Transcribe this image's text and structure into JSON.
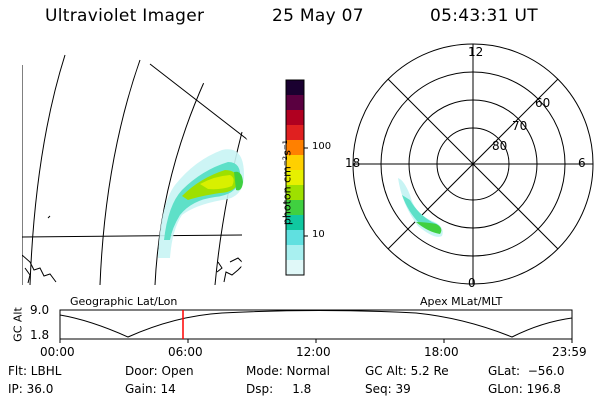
{
  "header": {
    "title": "Ultraviolet Imager",
    "date": "25 May 07",
    "time": "05:43:31 UT"
  },
  "colorbar": {
    "unit_label": "photon cm⁻²s⁻¹",
    "ticks": [
      "100",
      "10"
    ],
    "scale": "log",
    "colors": [
      "#1a0030",
      "#5a0040",
      "#b00020",
      "#e02020",
      "#ff8000",
      "#ffd000",
      "#e6f000",
      "#9ee000",
      "#40d040",
      "#10c8a0",
      "#60e0e0",
      "#a8f0f0",
      "#e0f8f8"
    ]
  },
  "geo_panel": {
    "label": "Geographic Lat/Lon"
  },
  "polar_panel": {
    "label": "Apex MLat/MLT",
    "mlt_labels": [
      "12",
      "18",
      "6",
      "0"
    ],
    "mlat_labels": [
      "60",
      "70",
      "80"
    ]
  },
  "altitude_plot": {
    "ylabel": "GC Alt",
    "ytick_top": "9.0",
    "ytick_bottom": "1.8",
    "xticks": [
      "00:00",
      "06:00",
      "12:00",
      "18:00",
      "23:59"
    ],
    "marker_color": "#ff0000"
  },
  "info": {
    "flt": "Flt: LBHL",
    "ip": "IP: 36.0",
    "door": "Door: Open",
    "gain": "Gain: 14",
    "mode": "Mode: Normal",
    "dsp": "Dsp:     1.8",
    "gcalt": "GC Alt: 5.2 Re",
    "seq": "Seq: 39",
    "glat": "GLat:  −56.0",
    "glon": "GLon: 196.8"
  }
}
